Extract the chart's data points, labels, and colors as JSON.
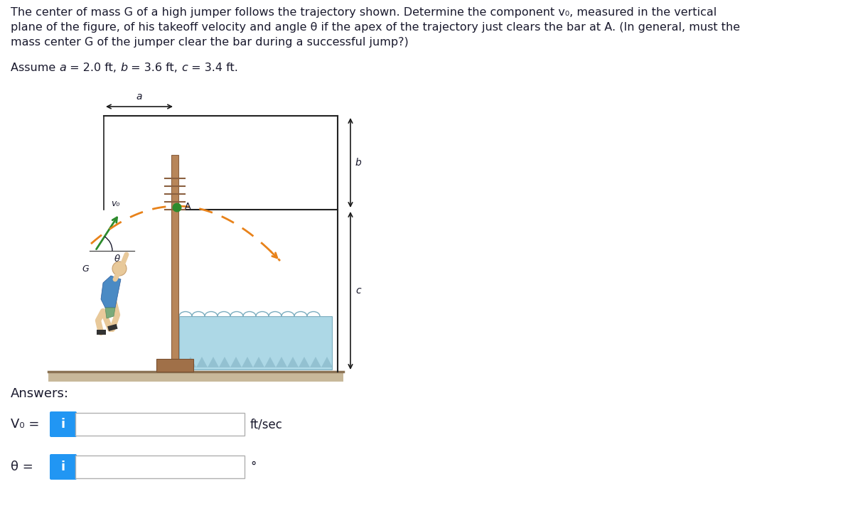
{
  "background_color": "#ffffff",
  "text_color": "#1a1a2e",
  "info_button_color": "#2196F3",
  "fig_width": 12.0,
  "fig_height": 7.43,
  "title_lines": [
    "The center of mass G of a high jumper follows the trajectory shown. Determine the component v₀, measured in the vertical",
    "plane of the figure, of his takeoff velocity and angle θ if the apex of the trajectory just clears the bar at A. (In general, must the",
    "mass center G of the jumper clear the bar during a successful jump?)"
  ],
  "assume_parts": [
    [
      "Assume ",
      false
    ],
    [
      "a",
      true
    ],
    [
      " = 2.0 ft, ",
      false
    ],
    [
      "b",
      true
    ],
    [
      " = 3.6 ft, ",
      false
    ],
    [
      "c",
      true
    ],
    [
      " = 3.4 ft.",
      false
    ]
  ],
  "pole_color": "#B8865A",
  "pole_base_color": "#A07048",
  "mat_color": "#ADD8E6",
  "mat_edge_color": "#7AACBE",
  "ground_color": "#C8B89A",
  "traj_color": "#E8821A",
  "v0_arrow_color": "#2D8B2D",
  "ball_color": "#2D8B2D",
  "dim_line_color": "#1a1a1a",
  "box_border_color": "#b0b0b0"
}
